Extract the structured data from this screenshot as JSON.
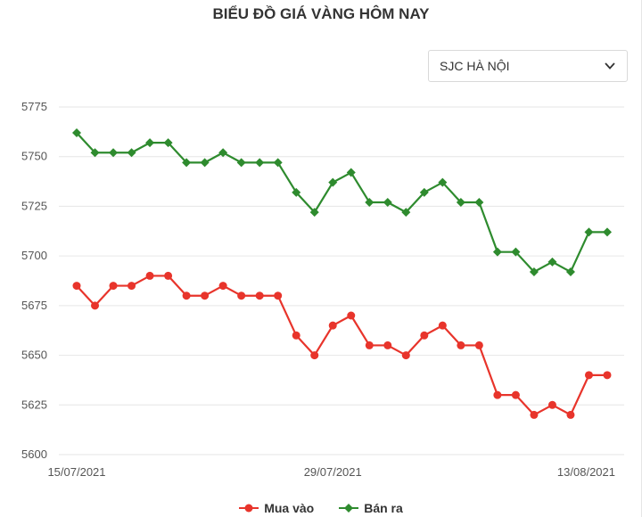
{
  "title": "BIỂU ĐỒ GIÁ VÀNG HÔM NAY",
  "location_select": {
    "selected": "SJC HÀ NỘI"
  },
  "colors": {
    "buy": "#e8342b",
    "sell": "#2e8b2e",
    "grid": "#e6e6e6",
    "axis_text": "#555555"
  },
  "chart_data": {
    "type": "line",
    "title": "BIỂU ĐỒ GIÁ VÀNG HÔM NAY",
    "x": [
      "15/07/2021",
      "16/07/2021",
      "17/07/2021",
      "18/07/2021",
      "19/07/2021",
      "20/07/2021",
      "21/07/2021",
      "22/07/2021",
      "23/07/2021",
      "24/07/2021",
      "25/07/2021",
      "26/07/2021",
      "27/07/2021",
      "28/07/2021",
      "29/07/2021",
      "30/07/2021",
      "31/07/2021",
      "01/08/2021",
      "02/08/2021",
      "03/08/2021",
      "04/08/2021",
      "05/08/2021",
      "06/08/2021",
      "07/08/2021",
      "08/08/2021",
      "09/08/2021",
      "10/08/2021",
      "11/08/2021",
      "12/08/2021",
      "13/08/2021"
    ],
    "x_tick_labels": [
      "15/07/2021",
      "29/07/2021",
      "13/08/2021"
    ],
    "y_ticks": [
      5600,
      5625,
      5650,
      5675,
      5700,
      5725,
      5750,
      5775
    ],
    "ylim": [
      5600,
      5775
    ],
    "grid": true,
    "legend_position": "bottom",
    "series": [
      {
        "name": "Mua vào",
        "color": "#e8342b",
        "marker": "circle",
        "values": [
          5685,
          5675,
          5685,
          5685,
          5690,
          5690,
          5680,
          5680,
          5685,
          5680,
          5680,
          5680,
          5660,
          5650,
          5665,
          5670,
          5655,
          5655,
          5650,
          5660,
          5665,
          5655,
          5655,
          5630,
          5630,
          5620,
          5625,
          5620,
          5640,
          5640
        ]
      },
      {
        "name": "Bán ra",
        "color": "#2e8b2e",
        "marker": "diamond",
        "values": [
          5762,
          5752,
          5752,
          5752,
          5757,
          5757,
          5747,
          5747,
          5752,
          5747,
          5747,
          5747,
          5732,
          5722,
          5737,
          5742,
          5727,
          5727,
          5722,
          5732,
          5737,
          5727,
          5727,
          5702,
          5702,
          5692,
          5697,
          5692,
          5712,
          5712
        ]
      }
    ]
  }
}
